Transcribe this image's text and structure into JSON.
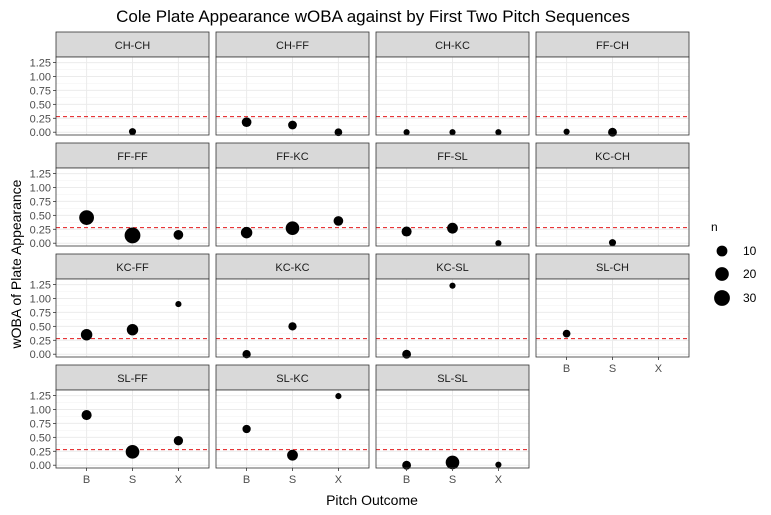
{
  "chart_data": {
    "type": "scatter",
    "title": "Cole Plate Appearance wOBA against by First Two Pitch Sequences",
    "xlabel": "Pitch Outcome",
    "ylabel": "wOBA of Plate Appearance",
    "x_categories": [
      "B",
      "S",
      "X"
    ],
    "y_ticks": [
      "0.00",
      "0.25",
      "0.50",
      "0.75",
      "1.00",
      "1.25"
    ],
    "ylim": [
      -0.05,
      1.35
    ],
    "reference_line": {
      "y": 0.28,
      "color": "#e41a1c",
      "style": "dashed"
    },
    "grid": true,
    "facet_layout": "wrap 4 columns",
    "legend": {
      "title": "n",
      "position": "right",
      "sizes": [
        10,
        20,
        30
      ]
    },
    "colors": {
      "point": "#000000",
      "strip_bg": "#d9d9d9",
      "panel_border": "#333333",
      "grid": "#ebebeb",
      "refline": "#e41a1c"
    },
    "facets": [
      {
        "label": "CH-CH",
        "points": [
          {
            "x": "S",
            "y": 0.01,
            "n": 2
          }
        ]
      },
      {
        "label": "CH-FF",
        "points": [
          {
            "x": "B",
            "y": 0.18,
            "n": 7
          },
          {
            "x": "S",
            "y": 0.13,
            "n": 5
          },
          {
            "x": "X",
            "y": 0.0,
            "n": 3
          }
        ]
      },
      {
        "label": "CH-KC",
        "points": [
          {
            "x": "B",
            "y": 0.0,
            "n": 1
          },
          {
            "x": "S",
            "y": 0.0,
            "n": 1
          },
          {
            "x": "X",
            "y": 0.0,
            "n": 1
          }
        ]
      },
      {
        "label": "FF-CH",
        "points": [
          {
            "x": "B",
            "y": 0.01,
            "n": 1
          },
          {
            "x": "S",
            "y": 0.0,
            "n": 5
          }
        ]
      },
      {
        "label": "FF-FF",
        "points": [
          {
            "x": "B",
            "y": 0.46,
            "n": 25
          },
          {
            "x": "S",
            "y": 0.14,
            "n": 30
          },
          {
            "x": "X",
            "y": 0.15,
            "n": 7
          }
        ]
      },
      {
        "label": "FF-KC",
        "points": [
          {
            "x": "B",
            "y": 0.19,
            "n": 12
          },
          {
            "x": "S",
            "y": 0.27,
            "n": 20
          },
          {
            "x": "X",
            "y": 0.4,
            "n": 7
          }
        ]
      },
      {
        "label": "FF-SL",
        "points": [
          {
            "x": "B",
            "y": 0.21,
            "n": 8
          },
          {
            "x": "S",
            "y": 0.27,
            "n": 10
          },
          {
            "x": "X",
            "y": 0.0,
            "n": 1
          }
        ]
      },
      {
        "label": "KC-CH",
        "points": [
          {
            "x": "S",
            "y": 0.01,
            "n": 2
          }
        ]
      },
      {
        "label": "KC-FF",
        "points": [
          {
            "x": "B",
            "y": 0.35,
            "n": 12
          },
          {
            "x": "S",
            "y": 0.44,
            "n": 12
          },
          {
            "x": "X",
            "y": 0.9,
            "n": 1
          }
        ]
      },
      {
        "label": "KC-KC",
        "points": [
          {
            "x": "B",
            "y": 0.0,
            "n": 4
          },
          {
            "x": "S",
            "y": 0.5,
            "n": 4
          }
        ]
      },
      {
        "label": "KC-SL",
        "points": [
          {
            "x": "B",
            "y": 0.0,
            "n": 5
          },
          {
            "x": "S",
            "y": 1.23,
            "n": 1
          }
        ]
      },
      {
        "label": "SL-CH",
        "points": [
          {
            "x": "B",
            "y": 0.37,
            "n": 3
          }
        ]
      },
      {
        "label": "SL-FF",
        "points": [
          {
            "x": "B",
            "y": 0.9,
            "n": 8
          },
          {
            "x": "S",
            "y": 0.24,
            "n": 20
          },
          {
            "x": "X",
            "y": 0.44,
            "n": 6
          }
        ]
      },
      {
        "label": "SL-KC",
        "points": [
          {
            "x": "B",
            "y": 0.65,
            "n": 4
          },
          {
            "x": "S",
            "y": 0.18,
            "n": 10
          },
          {
            "x": "X",
            "y": 1.24,
            "n": 1
          }
        ]
      },
      {
        "label": "SL-SL",
        "points": [
          {
            "x": "B",
            "y": 0.0,
            "n": 5
          },
          {
            "x": "S",
            "y": 0.05,
            "n": 20
          },
          {
            "x": "X",
            "y": 0.01,
            "n": 1
          }
        ]
      }
    ]
  }
}
